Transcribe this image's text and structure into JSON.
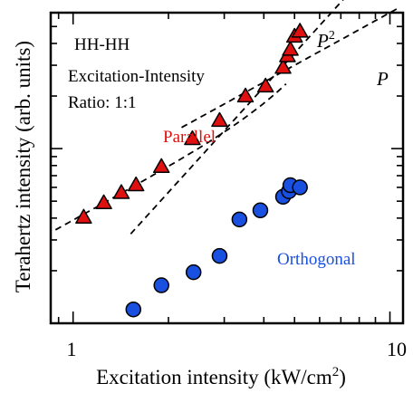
{
  "chart_data": {
    "type": "scatter",
    "xlabel": "Excitation intensity (kW/cm²)",
    "ylabel": "Terahertz intensity (arb. units)",
    "x_scale": "log",
    "y_scale": "log",
    "xlim": [
      0.85,
      11
    ],
    "ylim": [
      0.1,
      6.0
    ],
    "x_ticks": [
      1,
      10
    ],
    "annotations": [
      "HH-HH",
      "Excitation-Intensity",
      "Ratio: 1:1"
    ],
    "series": [
      {
        "name": "Parallel",
        "marker": "triangle",
        "color": "#e01010",
        "x": [
          1.08,
          1.25,
          1.42,
          1.58,
          1.9,
          2.38,
          2.9,
          3.5,
          4.05,
          4.6,
          4.75,
          4.85,
          5.0,
          5.2
        ],
        "y": [
          0.405,
          0.49,
          0.56,
          0.62,
          0.79,
          1.14,
          1.45,
          2.0,
          2.28,
          2.92,
          3.4,
          3.7,
          4.4,
          4.7
        ]
      },
      {
        "name": "Orthogonal",
        "marker": "circle",
        "color": "#1a50e0",
        "x": [
          1.55,
          1.9,
          2.4,
          2.9,
          3.35,
          3.9,
          4.6,
          4.8,
          4.85,
          5.2
        ],
        "y": [
          0.12,
          0.165,
          0.196,
          0.243,
          0.393,
          0.443,
          0.53,
          0.57,
          0.617,
          0.6
        ]
      }
    ],
    "fits": [
      {
        "label": "P",
        "power": 1,
        "ref_x": 1.0,
        "ref_y": 0.96
      },
      {
        "label": "P",
        "superscript": "2",
        "power": 2,
        "ref_x": 4.0,
        "ref_y": 2.25
      }
    ],
    "colors": {
      "parallel_fill": "#e01010",
      "orthogonal_fill": "#1a50e0",
      "orthogonal_label": "#1a50e0",
      "parallel_label": "#e01010",
      "axis": "#000000"
    }
  }
}
